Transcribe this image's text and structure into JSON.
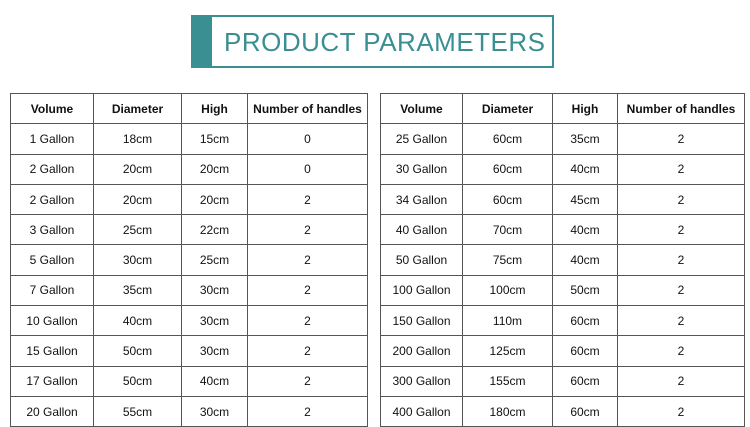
{
  "title": "PRODUCT  PARAMETERS",
  "headers": [
    "Volume",
    "Diameter",
    "High",
    "Number of handles"
  ],
  "left_rows": [
    [
      "1 Gallon",
      "18cm",
      "15cm",
      "0"
    ],
    [
      "2 Gallon",
      "20cm",
      "20cm",
      "0"
    ],
    [
      "2 Gallon",
      "20cm",
      "20cm",
      "2"
    ],
    [
      "3 Gallon",
      "25cm",
      "22cm",
      "2"
    ],
    [
      "5 Gallon",
      "30cm",
      "25cm",
      "2"
    ],
    [
      "7 Gallon",
      "35cm",
      "30cm",
      "2"
    ],
    [
      "10 Gallon",
      "40cm",
      "30cm",
      "2"
    ],
    [
      "15 Gallon",
      "50cm",
      "30cm",
      "2"
    ],
    [
      "17 Gallon",
      "50cm",
      "40cm",
      "2"
    ],
    [
      "20 Gallon",
      "55cm",
      "30cm",
      "2"
    ]
  ],
  "right_rows": [
    [
      "25 Gallon",
      "60cm",
      "35cm",
      "2"
    ],
    [
      "30 Gallon",
      "60cm",
      "40cm",
      "2"
    ],
    [
      "34 Gallon",
      "60cm",
      "45cm",
      "2"
    ],
    [
      "40 Gallon",
      "70cm",
      "40cm",
      "2"
    ],
    [
      "50 Gallon",
      "75cm",
      "40cm",
      "2"
    ],
    [
      "100 Gallon",
      "100cm",
      "50cm",
      "2"
    ],
    [
      "150 Gallon",
      "110m",
      "60cm",
      "2"
    ],
    [
      "200 Gallon",
      "125cm",
      "60cm",
      "2"
    ],
    [
      "300 Gallon",
      "155cm",
      "60cm",
      "2"
    ],
    [
      "400 Gallon",
      "180cm",
      "60cm",
      "2"
    ]
  ],
  "colors": {
    "accent": "#3a8f93",
    "border": "#555555"
  }
}
